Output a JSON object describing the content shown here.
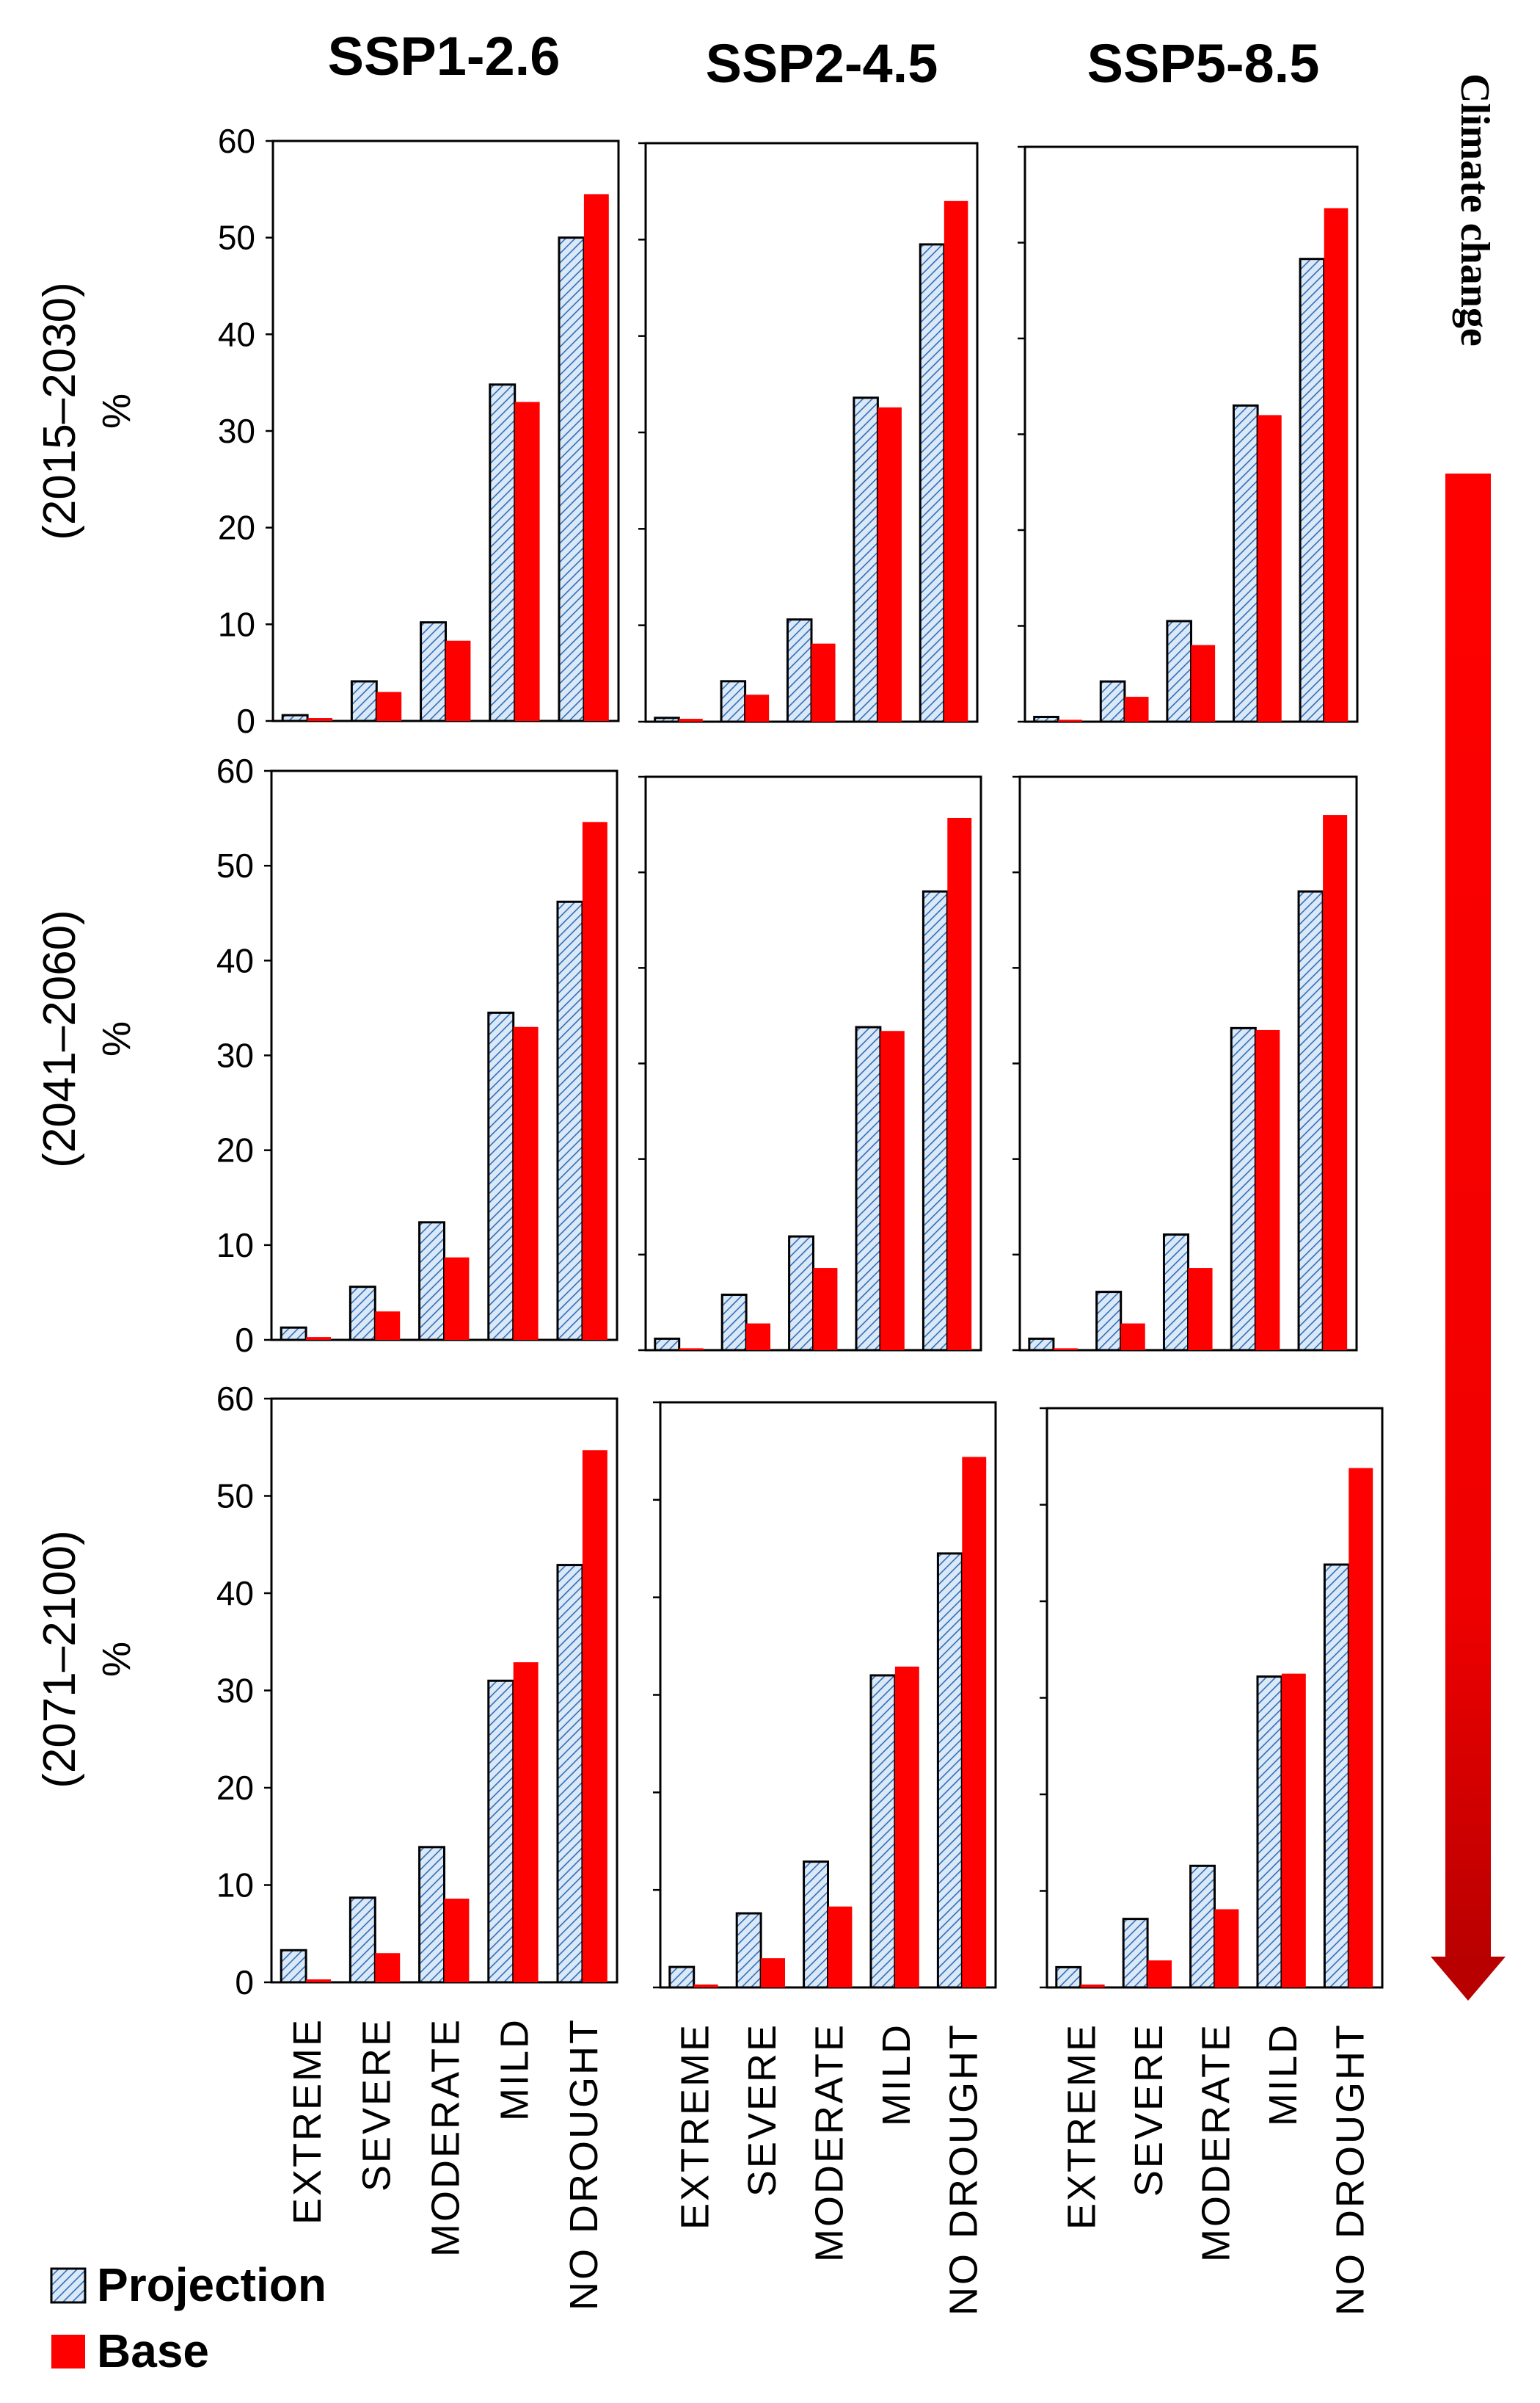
{
  "figure": {
    "arrow_label": "Climate change",
    "colors": {
      "projection_fill": "#dbe8f7",
      "projection_hatch": "#2e6fb8",
      "base": "#ff0000",
      "arrow_top": "#ff0000",
      "arrow_bottom": "#b80000"
    }
  },
  "chart_data": {
    "type": "bar",
    "scenarios": [
      "SSP1-2.6",
      "SSP2-4.5",
      "SSP5-8.5"
    ],
    "periods": [
      "(2015–2030)",
      "(2041–2060)",
      "(2071–2100)"
    ],
    "ylabel": "%",
    "ylim": [
      0,
      60
    ],
    "yticks": [
      0,
      10,
      20,
      30,
      40,
      50,
      60
    ],
    "categories": [
      "EXTREME",
      "SEVERE",
      "MODERATE",
      "MILD",
      "NO DROUGHT"
    ],
    "legend": [
      "Projection",
      "Base"
    ],
    "panels": [
      [
        {
          "projection": [
            0.6,
            4.1,
            10.2,
            34.8,
            50.0
          ],
          "base": [
            0.3,
            3.0,
            8.3,
            33.0,
            54.5
          ]
        },
        {
          "projection": [
            0.4,
            4.2,
            10.6,
            33.6,
            49.5
          ],
          "base": [
            0.3,
            2.8,
            8.1,
            32.6,
            54.0
          ]
        },
        {
          "projection": [
            0.5,
            4.2,
            10.5,
            33.0,
            48.3
          ],
          "base": [
            0.2,
            2.6,
            8.0,
            32.0,
            53.6
          ]
        }
      ],
      [
        {
          "projection": [
            1.3,
            5.6,
            12.4,
            34.5,
            46.2
          ],
          "base": [
            0.3,
            3.0,
            8.7,
            33.0,
            54.6
          ]
        },
        {
          "projection": [
            1.2,
            5.8,
            11.9,
            33.8,
            48.0
          ],
          "base": [
            0.2,
            2.8,
            8.6,
            33.4,
            55.7
          ]
        },
        {
          "projection": [
            1.2,
            6.1,
            12.1,
            33.7,
            48.0
          ],
          "base": [
            0.2,
            2.8,
            8.6,
            33.5,
            56.0
          ]
        }
      ],
      [
        {
          "projection": [
            3.3,
            8.7,
            13.9,
            31.0,
            42.9
          ],
          "base": [
            0.3,
            3.0,
            8.6,
            32.9,
            54.7
          ]
        },
        {
          "projection": [
            2.1,
            7.6,
            12.9,
            32.0,
            44.5
          ],
          "base": [
            0.3,
            3.0,
            8.3,
            32.9,
            54.4
          ]
        },
        {
          "projection": [
            2.1,
            7.1,
            12.6,
            32.2,
            43.8
          ],
          "base": [
            0.3,
            2.8,
            8.1,
            32.5,
            53.8
          ]
        }
      ]
    ]
  }
}
